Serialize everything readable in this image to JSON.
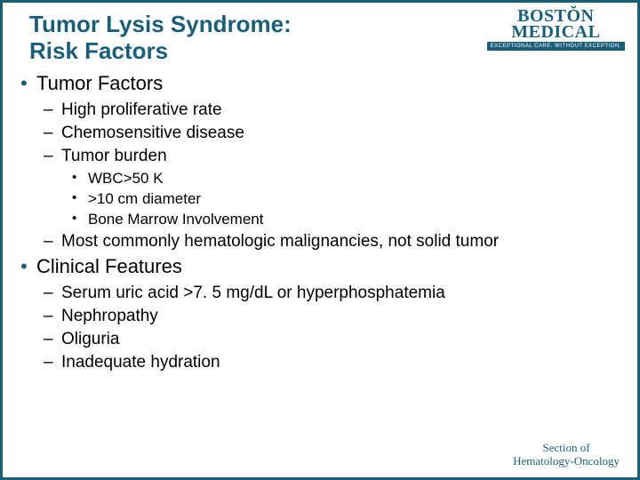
{
  "title_line1": "Tumor Lysis Syndrome:",
  "title_line2": "Risk Factors",
  "logo": {
    "line1": "BOSTŎN",
    "line2": "MEDICAL",
    "tagline": "EXCEPTIONAL CARE. WITHOUT EXCEPTION."
  },
  "bullets": {
    "b1": "Tumor Factors",
    "b1_1": "High proliferative rate",
    "b1_2": "Chemosensitive disease",
    "b1_3": "Tumor burden",
    "b1_3_1": "WBC>50 K",
    "b1_3_2": ">10 cm diameter",
    "b1_3_3": "Bone Marrow Involvement",
    "b1_4": "Most commonly hematologic malignancies, not solid tumor",
    "b2": "Clinical Features",
    "b2_1": "Serum uric acid >7. 5 mg/dL or hyperphosphatemia",
    "b2_2": "Nephropathy",
    "b2_3": "Oliguria",
    "b2_4": "Inadequate hydration"
  },
  "footer": {
    "line1": "Section of",
    "line2": "Hematology-Oncology"
  },
  "colors": {
    "brand": "#1a5f7a",
    "text": "#000000",
    "bg": "#ffffff"
  }
}
